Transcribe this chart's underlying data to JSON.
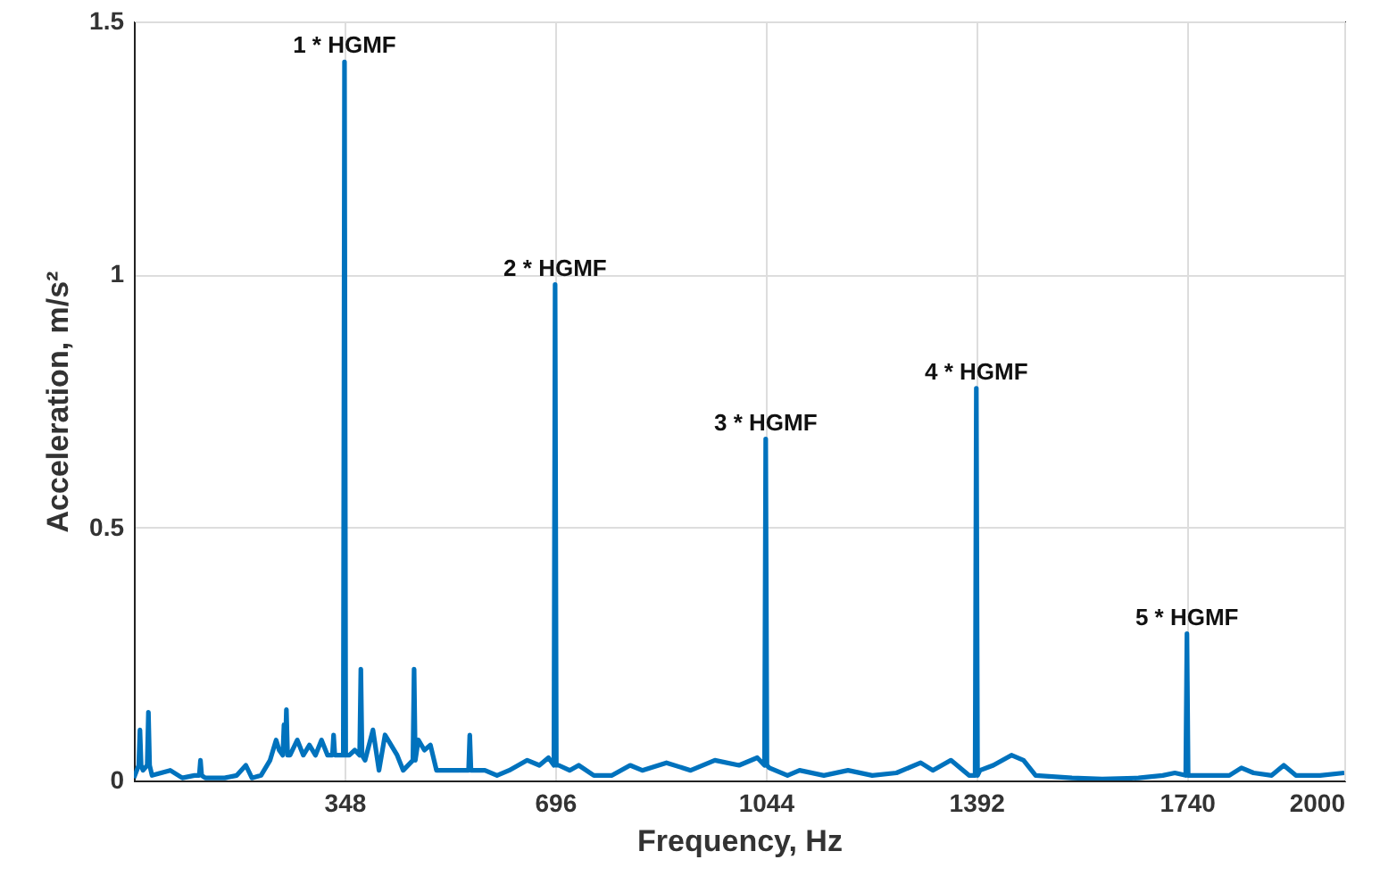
{
  "chart_data": {
    "type": "line",
    "xlabel": "Frequency, Hz",
    "ylabel": "Acceleration, m/s²",
    "xlim": [
      0,
      2000
    ],
    "xticks": [
      348,
      696,
      1044,
      1392,
      1740,
      2000
    ],
    "ylim": [
      0,
      1.5
    ],
    "yticks": [
      0,
      0.5,
      1,
      1.5
    ],
    "grid": true,
    "series": [
      {
        "color": "#0072bd",
        "x": [
          0,
          8,
          10,
          12,
          15,
          22,
          24,
          26,
          30,
          60,
          80,
          100,
          108,
          110,
          112,
          118,
          150,
          170,
          185,
          195,
          210,
          225,
          235,
          240,
          246,
          248,
          250,
          252,
          254,
          258,
          270,
          280,
          290,
          300,
          310,
          320,
          328,
          330,
          332,
          338,
          346,
          348,
          350,
          356,
          365,
          373,
          375,
          377,
          382,
          395,
          405,
          415,
          425,
          435,
          445,
          461,
          463,
          465,
          470,
          480,
          490,
          500,
          520,
          540,
          553,
          555,
          557,
          565,
          580,
          600,
          620,
          650,
          670,
          685,
          694,
          696,
          698,
          702,
          720,
          735,
          760,
          790,
          820,
          840,
          880,
          920,
          960,
          1000,
          1030,
          1042,
          1044,
          1046,
          1050,
          1080,
          1100,
          1140,
          1180,
          1220,
          1260,
          1300,
          1320,
          1350,
          1380,
          1390,
          1392,
          1394,
          1398,
          1420,
          1450,
          1470,
          1490,
          1550,
          1600,
          1660,
          1700,
          1720,
          1738,
          1740,
          1742,
          1748,
          1780,
          1810,
          1830,
          1850,
          1880,
          1900,
          1920,
          1960,
          2000
        ],
        "values": [
          0.005,
          0.03,
          0.1,
          0.03,
          0.02,
          0.03,
          0.135,
          0.03,
          0.01,
          0.02,
          0.005,
          0.01,
          0.01,
          0.04,
          0.01,
          0.005,
          0.005,
          0.01,
          0.03,
          0.005,
          0.01,
          0.04,
          0.08,
          0.06,
          0.05,
          0.11,
          0.06,
          0.14,
          0.05,
          0.05,
          0.08,
          0.05,
          0.07,
          0.05,
          0.08,
          0.05,
          0.05,
          0.09,
          0.05,
          0.05,
          0.05,
          1.42,
          0.05,
          0.05,
          0.06,
          0.05,
          0.22,
          0.05,
          0.04,
          0.1,
          0.02,
          0.09,
          0.07,
          0.05,
          0.02,
          0.04,
          0.22,
          0.04,
          0.08,
          0.06,
          0.07,
          0.02,
          0.02,
          0.02,
          0.02,
          0.09,
          0.02,
          0.02,
          0.02,
          0.01,
          0.02,
          0.04,
          0.03,
          0.045,
          0.03,
          0.98,
          0.03,
          0.03,
          0.02,
          0.03,
          0.01,
          0.01,
          0.03,
          0.02,
          0.035,
          0.02,
          0.04,
          0.03,
          0.045,
          0.03,
          0.675,
          0.03,
          0.025,
          0.01,
          0.02,
          0.01,
          0.02,
          0.01,
          0.015,
          0.035,
          0.02,
          0.04,
          0.01,
          0.01,
          0.775,
          0.01,
          0.02,
          0.03,
          0.05,
          0.04,
          0.01,
          0.005,
          0.003,
          0.005,
          0.01,
          0.015,
          0.01,
          0.29,
          0.01,
          0.01,
          0.01,
          0.01,
          0.025,
          0.015,
          0.01,
          0.03,
          0.01,
          0.01,
          0.015
        ]
      }
    ],
    "annotations": [
      {
        "text": "1 * HGMF",
        "x": 348,
        "y": 1.42
      },
      {
        "text": "2 * HGMF",
        "x": 696,
        "y": 0.98
      },
      {
        "text": "3 * HGMF",
        "x": 1044,
        "y": 0.675
      },
      {
        "text": "4 * HGMF",
        "x": 1392,
        "y": 0.775
      },
      {
        "text": "5 * HGMF",
        "x": 1740,
        "y": 0.29
      }
    ]
  }
}
